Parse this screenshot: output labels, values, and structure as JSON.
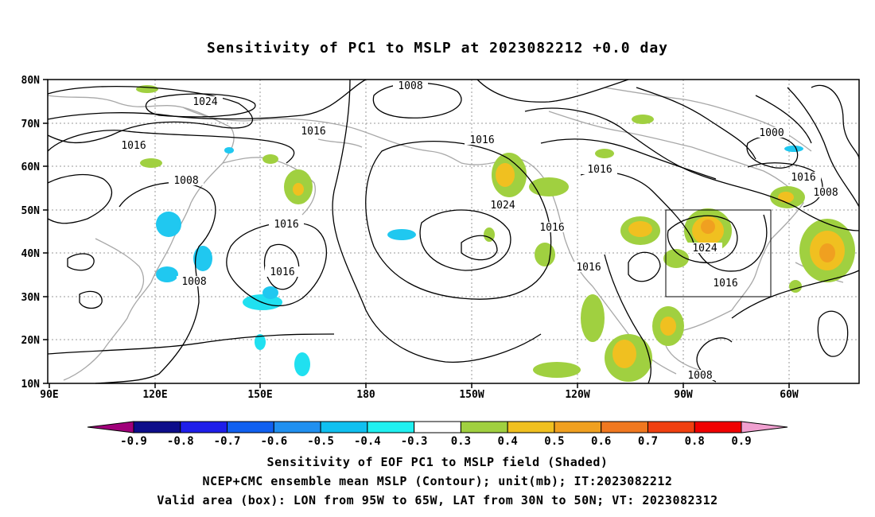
{
  "title": "Sensitivity of PC1 to MSLP at 2023082212 +0.0 day",
  "axes": {
    "lat_labels": [
      "80N",
      "70N",
      "60N",
      "50N",
      "40N",
      "30N",
      "20N",
      "10N"
    ],
    "lon_labels": [
      "90E",
      "120E",
      "150E",
      "180",
      "150W",
      "120W",
      "90W",
      "60W"
    ]
  },
  "contour_labels": [
    "1008",
    "1024",
    "1016",
    "1016",
    "1000",
    "1016",
    "1016",
    "1008",
    "1024",
    "1016",
    "1016",
    "1016",
    "1016",
    "1024",
    "1008",
    "1016",
    "1008",
    "1016"
  ],
  "colorbar": {
    "labels": [
      "-0.9",
      "-0.8",
      "-0.7",
      "-0.6",
      "-0.5",
      "-0.4",
      "-0.3",
      "0.3",
      "0.4",
      "0.5",
      "0.6",
      "0.7",
      "0.8",
      "0.9"
    ],
    "colors": [
      "#a0007a",
      "#0d0d8a",
      "#1e1eea",
      "#1060f0",
      "#2090f0",
      "#10c0f0",
      "#20f0f0",
      "#ffffff",
      "#a0d040",
      "#f0c020",
      "#f0a020",
      "#f07820",
      "#f04010",
      "#f00000",
      "#f0a0d0"
    ]
  },
  "valid_box": {
    "lon_from": "95W",
    "lon_to": "65W",
    "lat_from": "30N",
    "lat_to": "50N"
  },
  "captions": [
    "Sensitivity of EOF PC1 to MSLP field (Shaded)",
    "NCEP+CMC ensemble mean MSLP (Contour); unit(mb); IT:2023082212",
    "Valid area (box): LON from 95W to 65W, LAT from 30N to 50N; VT: 2023082312"
  ]
}
